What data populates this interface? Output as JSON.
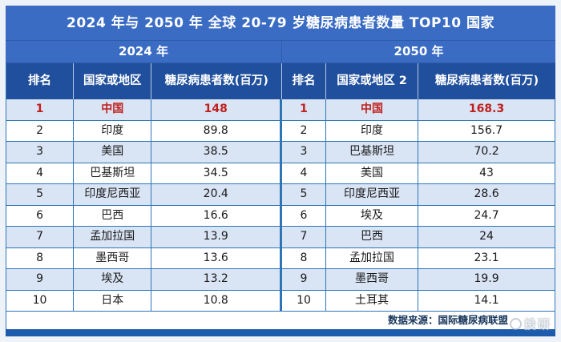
{
  "title": "2024 年与 2050 年 全球 20-79 岁糖尿病患者数量 TOP10 国家",
  "chart_data": {
    "type": "table",
    "title": "2024 年与 2050 年 全球 20-79 岁糖尿病患者数量 TOP10 国家",
    "unit": "百万",
    "sections": [
      {
        "year": "2024 年",
        "columns": [
          "排名",
          "国家或地区",
          "糖尿病患者数(百万)"
        ],
        "rows": [
          {
            "rank": "1",
            "country": "中国",
            "value": "148",
            "highlight": true
          },
          {
            "rank": "2",
            "country": "印度",
            "value": "89.8"
          },
          {
            "rank": "3",
            "country": "美国",
            "value": "38.5"
          },
          {
            "rank": "4",
            "country": "巴基斯坦",
            "value": "34.5"
          },
          {
            "rank": "5",
            "country": "印度尼西亚",
            "value": "20.4"
          },
          {
            "rank": "6",
            "country": "巴西",
            "value": "16.6"
          },
          {
            "rank": "7",
            "country": "孟加拉国",
            "value": "13.9"
          },
          {
            "rank": "8",
            "country": "墨西哥",
            "value": "13.6"
          },
          {
            "rank": "9",
            "country": "埃及",
            "value": "13.2"
          },
          {
            "rank": "10",
            "country": "日本",
            "value": "10.8"
          }
        ]
      },
      {
        "year": "2050 年",
        "columns": [
          "排名",
          "国家或地区 2",
          "糖尿病患者数(百万)"
        ],
        "rows": [
          {
            "rank": "1",
            "country": "中国",
            "value": "168.3",
            "highlight": true
          },
          {
            "rank": "2",
            "country": "印度",
            "value": "156.7"
          },
          {
            "rank": "3",
            "country": "巴基斯坦",
            "value": "70.2"
          },
          {
            "rank": "4",
            "country": "美国",
            "value": "43"
          },
          {
            "rank": "5",
            "country": "印度尼西亚",
            "value": "28.6"
          },
          {
            "rank": "6",
            "country": "埃及",
            "value": "24.7"
          },
          {
            "rank": "7",
            "country": "巴西",
            "value": "24"
          },
          {
            "rank": "8",
            "country": "孟加拉国",
            "value": "23.1"
          },
          {
            "rank": "9",
            "country": "墨西哥",
            "value": "19.9"
          },
          {
            "rank": "10",
            "country": "土耳其",
            "value": "14.1"
          }
        ]
      }
    ]
  },
  "footer": {
    "source": "数据来源：国际糖尿病联盟",
    "watermark": "投研"
  },
  "colors": {
    "band_blue": "#3a6cc4",
    "header_blue": "#1f4f9d",
    "border_blue": "#2e75b6",
    "alt_row_blue": "#d9e4f4",
    "highlight_red": "#c0201e",
    "strip_blue": "#1d5bac",
    "source_text": "#17365c"
  }
}
